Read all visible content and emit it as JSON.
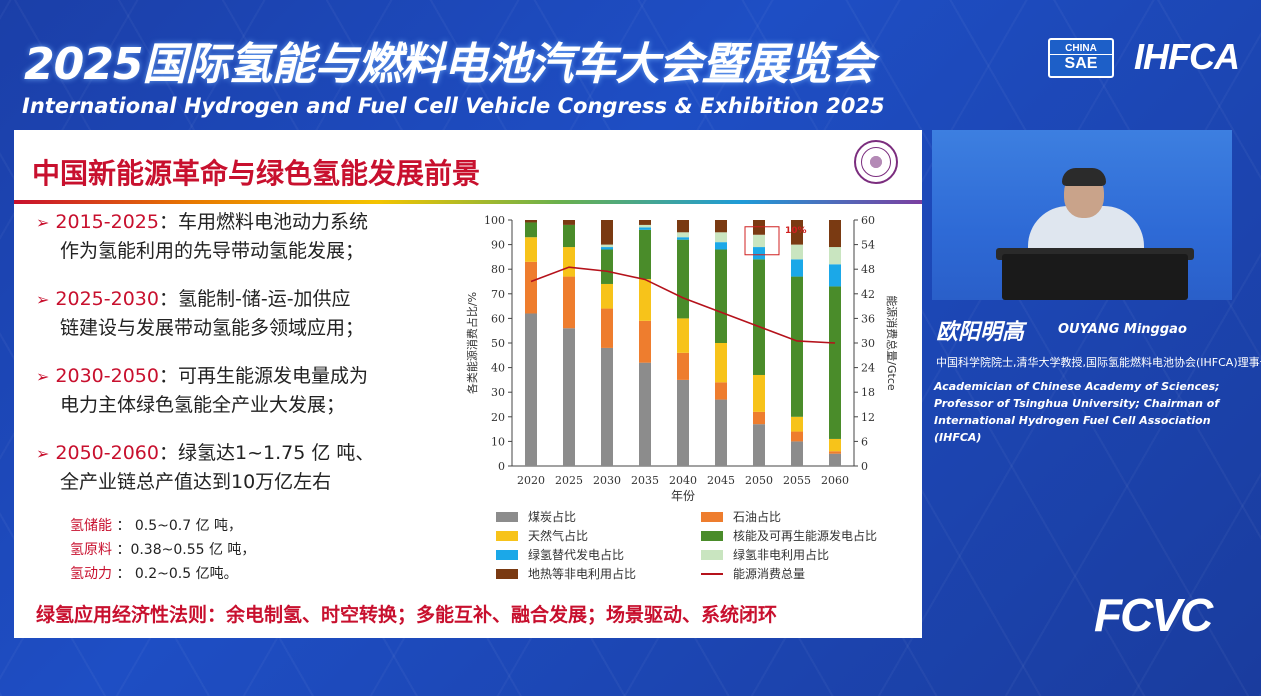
{
  "banner": {
    "title": "2025国际氢能与燃料电池汽车大会暨展览会",
    "subtitle": "International Hydrogen and Fuel Cell Vehicle Congress & Exhibition 2025",
    "logo_sae_top": "CHINA",
    "logo_sae_bottom": "SAE",
    "logo_ihfca": "IHFCA"
  },
  "slide": {
    "title": "中国新能源革命与绿色氢能发展前景",
    "bullets": [
      {
        "year": "2015-2025",
        "line1": "：车用燃料电池动力系统",
        "line2": "作为氢能利用的先导带动氢能发展；"
      },
      {
        "year": "2025-2030",
        "line1": "：氢能制-储-运-加供应",
        "line2": "链建设与发展带动氢能多领域应用；"
      },
      {
        "year": "2030-2050",
        "line1": "：可再生能源发电量成为",
        "line2": "电力主体绿色氢能全产业大发展；"
      },
      {
        "year": "2050-2060",
        "line1": "：绿氢达1~1.75 亿 吨、",
        "line2": "全产业链总产值达到10万亿左右"
      }
    ],
    "subs": [
      {
        "key": "氢储能",
        "val": " ： 0.5~0.7 亿 吨，"
      },
      {
        "key": "氢原料",
        "val": " ：0.38~0.55 亿 吨，"
      },
      {
        "key": "氢动力",
        "val": " ： 0.2~0.5 亿吨。"
      }
    ],
    "slogan": "绿氢应用经济性法则：余电制氢、时空转换；多能互补、融合发展；场景驱动、系统闭环"
  },
  "speaker": {
    "name_cn": "欧阳明高",
    "name_en": "OUYANG Minggao",
    "title_cn": "中国科学院院士,清华大学教授,国际氢能燃料电池协会(IHFCA)理事长",
    "title_en": "Academician of Chinese Academy of Sciences; Professor of Tsinghua University; Chairman of International Hydrogen Fuel Cell Association (IHFCA)"
  },
  "footer_logo": "FCVC",
  "colors": {
    "coal": "#8c8c8c",
    "oil": "#ee7d2e",
    "gas": "#f7c31a",
    "nuclear_renewable": "#4a8c2a",
    "green_h2_power": "#1ba8e8",
    "green_h2_nonpower": "#c9e5c0",
    "heat": "#7a3a12",
    "total_line": "#b5121b"
  },
  "chart_data": {
    "type": "bar",
    "stacked": true,
    "categories": [
      "2020",
      "2025",
      "2030",
      "2035",
      "2040",
      "2045",
      "2050",
      "2055",
      "2060"
    ],
    "xlabel": "年份",
    "ylabel": "各类能源消费占比/%",
    "y2label": "能源消费总量/Gtce",
    "ylim": [
      0,
      100
    ],
    "y2lim": [
      0,
      60
    ],
    "yticks": [
      0,
      10,
      20,
      30,
      40,
      50,
      60,
      70,
      80,
      90,
      100
    ],
    "y2ticks": [
      0,
      6,
      12,
      18,
      24,
      30,
      36,
      42,
      48,
      54,
      60
    ],
    "annotation": "10%",
    "series": [
      {
        "name": "煤炭占比",
        "color": "coal",
        "values": [
          62,
          56,
          48,
          42,
          35,
          27,
          17,
          10,
          5
        ]
      },
      {
        "name": "石油占比",
        "color": "oil",
        "values": [
          21,
          21,
          16,
          17,
          11,
          7,
          5,
          4,
          1
        ]
      },
      {
        "name": "天然气占比",
        "color": "gas",
        "values": [
          10,
          12,
          10,
          17,
          14,
          16,
          15,
          6,
          5
        ]
      },
      {
        "name": "核能及可再生能源发电占比",
        "color": "nuclear_renewable",
        "values": [
          6,
          9,
          14,
          20,
          32,
          38,
          47,
          57,
          62
        ]
      },
      {
        "name": "绿氢替代发电占比",
        "color": "green_h2_power",
        "values": [
          0,
          0,
          1,
          1,
          1,
          3,
          5,
          7,
          9
        ]
      },
      {
        "name": "绿氢非电利用占比",
        "color": "green_h2_nonpower",
        "values": [
          0,
          0,
          1,
          1,
          2,
          4,
          5,
          6,
          7
        ]
      },
      {
        "name": "地热等非电利用占比",
        "color": "heat",
        "values": [
          1,
          2,
          10,
          2,
          5,
          5,
          6,
          10,
          11
        ]
      }
    ],
    "line": {
      "name": "能源消费总量",
      "color": "total_line",
      "values": [
        45,
        48.5,
        47.5,
        45.5,
        41,
        37.5,
        34,
        30.5,
        30
      ]
    }
  }
}
